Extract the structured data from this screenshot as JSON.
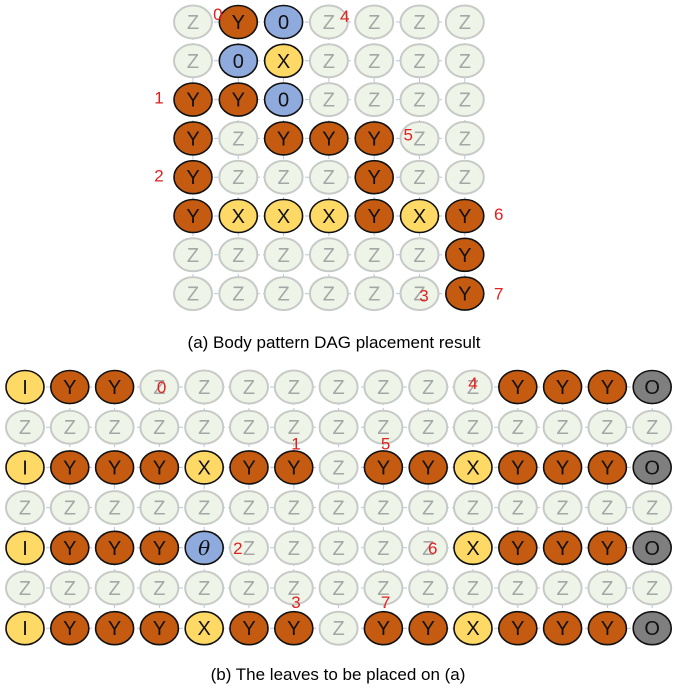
{
  "palette": {
    "Z": {
      "fill": "#eef5e8",
      "stroke": "#c7cac7",
      "text": "#a6a6a6"
    },
    "Y": {
      "fill": "#c55a11",
      "stroke": "#111111",
      "text": "#111111"
    },
    "X": {
      "fill": "#ffd966",
      "stroke": "#111111",
      "text": "#111111"
    },
    "0": {
      "fill": "#8faadc",
      "stroke": "#111111",
      "text": "#111111"
    },
    "I": {
      "fill": "#ffd966",
      "stroke": "#111111",
      "text": "#111111"
    },
    "O": {
      "fill": "#7f7f7f",
      "stroke": "#111111",
      "text": "#111111"
    },
    "θ": {
      "fill": "#8faadc",
      "stroke": "#111111",
      "text": "#111111"
    },
    "grid_line": "#b4c7e7",
    "number_color": "#e0201e"
  },
  "diagram_a": {
    "caption": "(a) Body pattern DAG placement result",
    "grid": [
      [
        "Z",
        "Y",
        "0",
        "Z",
        "Z",
        "Z",
        "Z"
      ],
      [
        "Z",
        "0",
        "X",
        "Z",
        "Z",
        "Z",
        "Z"
      ],
      [
        "Y",
        "Y",
        "0",
        "Z",
        "Z",
        "Z",
        "Z"
      ],
      [
        "Y",
        "Z",
        "Y",
        "Y",
        "Y",
        "Z",
        "Z"
      ],
      [
        "Y",
        "Z",
        "Z",
        "Z",
        "Y",
        "Z",
        "Z"
      ],
      [
        "Y",
        "X",
        "X",
        "X",
        "Y",
        "X",
        "Y"
      ],
      [
        "Z",
        "Z",
        "Z",
        "Z",
        "Z",
        "Z",
        "Y"
      ],
      [
        "Z",
        "Z",
        "Z",
        "Z",
        "Z",
        "Z",
        "Y"
      ]
    ],
    "labels": [
      {
        "text": "0",
        "row": 0,
        "col": 0,
        "dx": 0.55,
        "dy": -0.2
      },
      {
        "text": "4",
        "row": 0,
        "col": 3,
        "dx": 0.35,
        "dy": -0.15
      },
      {
        "text": "1",
        "row": 2,
        "col": 0,
        "dx": -0.75,
        "dy": -0.05
      },
      {
        "text": "5",
        "row": 3,
        "col": 4,
        "dx": 0.75,
        "dy": -0.1
      },
      {
        "text": "2",
        "row": 4,
        "col": 0,
        "dx": -0.75,
        "dy": -0.05
      },
      {
        "text": "6",
        "row": 5,
        "col": 6,
        "dx": 0.75,
        "dy": -0.05
      },
      {
        "text": "3",
        "row": 7,
        "col": 5,
        "dx": 0.1,
        "dy": 0.05
      },
      {
        "text": "7",
        "row": 7,
        "col": 6,
        "dx": 0.75,
        "dy": 0.0
      }
    ]
  },
  "diagram_b": {
    "caption": "(b) The leaves to be placed on (a)",
    "grid": [
      [
        "I",
        "Y",
        "Y",
        "Z",
        "Z",
        "Z",
        "Z",
        "Z",
        "Z",
        "Z",
        "Z",
        "Y",
        "Y",
        "Y",
        "O"
      ],
      [
        "Z",
        "Z",
        "Z",
        "Z",
        "Z",
        "Z",
        "Z",
        "Z",
        "Z",
        "Z",
        "Z",
        "Z",
        "Z",
        "Z",
        "Z"
      ],
      [
        "I",
        "Y",
        "Y",
        "Y",
        "X",
        "Y",
        "Y",
        "Z",
        "Y",
        "Y",
        "X",
        "Y",
        "Y",
        "Y",
        "O"
      ],
      [
        "Z",
        "Z",
        "Z",
        "Z",
        "Z",
        "Z",
        "Z",
        "Z",
        "Z",
        "Z",
        "Z",
        "Z",
        "Z",
        "Z",
        "Z"
      ],
      [
        "I",
        "Y",
        "Y",
        "Y",
        "θ",
        "Z",
        "Z",
        "Z",
        "Z",
        "Z",
        "X",
        "Y",
        "Y",
        "Y",
        "O"
      ],
      [
        "Z",
        "Z",
        "Z",
        "Z",
        "Z",
        "Z",
        "Z",
        "Z",
        "Z",
        "Z",
        "Z",
        "Z",
        "Z",
        "Z",
        "Z"
      ],
      [
        "I",
        "Y",
        "Y",
        "Y",
        "X",
        "Y",
        "Y",
        "Z",
        "Y",
        "Y",
        "X",
        "Y",
        "Y",
        "Y",
        "O"
      ]
    ],
    "labels": [
      {
        "text": "0",
        "row": 0,
        "col": 3,
        "dx": 0.05,
        "dy": 0.0
      },
      {
        "text": "4",
        "row": 0,
        "col": 10,
        "dx": 0.0,
        "dy": -0.1
      },
      {
        "text": "1",
        "row": 1,
        "col": 6,
        "dx": 0.05,
        "dy": 0.4
      },
      {
        "text": "5",
        "row": 1,
        "col": 8,
        "dx": 0.05,
        "dy": 0.4
      },
      {
        "text": "2",
        "row": 4,
        "col": 5,
        "dx": -0.25,
        "dy": 0.0
      },
      {
        "text": "6",
        "row": 4,
        "col": 9,
        "dx": 0.1,
        "dy": 0.0
      },
      {
        "text": "3",
        "row": 5,
        "col": 6,
        "dx": 0.05,
        "dy": 0.35
      },
      {
        "text": "7",
        "row": 5,
        "col": 8,
        "dx": 0.05,
        "dy": 0.35
      }
    ]
  }
}
